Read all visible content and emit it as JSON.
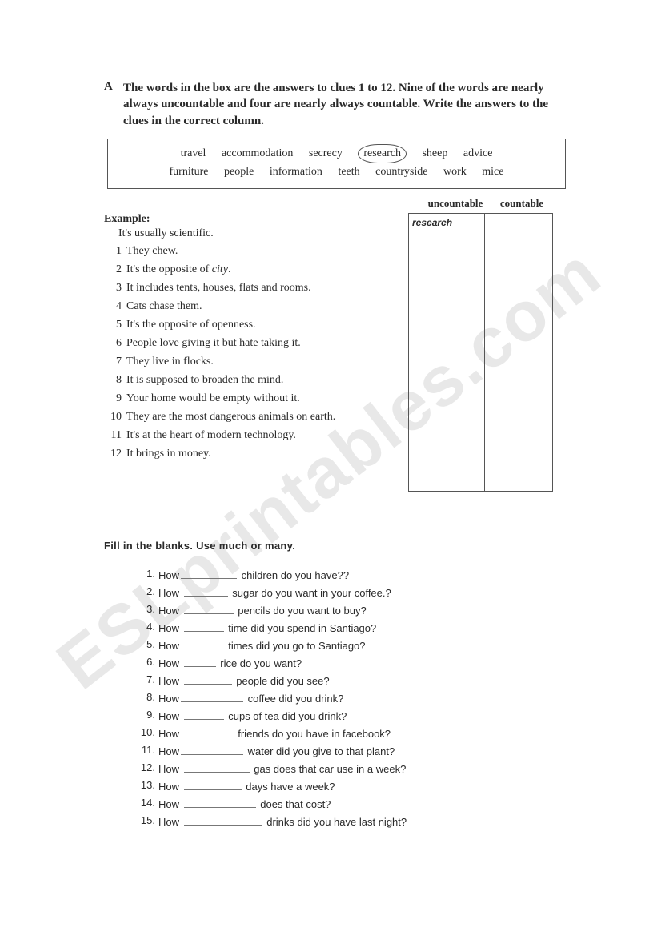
{
  "sectionA": {
    "letter": "A",
    "instruction": "The words in the box are the answers to clues 1 to 12. Nine of the words are nearly always uncountable and four are nearly always countable. Write the answers to the clues in the correct column.",
    "words_row1": [
      "travel",
      "accommodation",
      "secrecy",
      "research",
      "sheep",
      "advice"
    ],
    "words_row2": [
      "furniture",
      "people",
      "information",
      "teeth",
      "countryside",
      "work",
      "mice"
    ],
    "circled_word": "research",
    "col_head1": "uncountable",
    "col_head2": "countable",
    "example_label": "Example:",
    "example_text": "It's usually scientific.",
    "example_answer": "research",
    "clues": [
      {
        "n": "1",
        "t": "They chew."
      },
      {
        "n": "2",
        "t": "It's the opposite of city."
      },
      {
        "n": "3",
        "t": "It includes tents, houses, flats and rooms."
      },
      {
        "n": "4",
        "t": "Cats chase them."
      },
      {
        "n": "5",
        "t": "It's the opposite of openness."
      },
      {
        "n": "6",
        "t": "People love giving it but hate taking it."
      },
      {
        "n": "7",
        "t": "They live in flocks."
      },
      {
        "n": "8",
        "t": "It is supposed to broaden the mind."
      },
      {
        "n": "9",
        "t": "Your home would be empty without it."
      },
      {
        "n": "10",
        "t": "They are the most dangerous animals on earth."
      },
      {
        "n": "11",
        "t": "It's at the heart of modern technology."
      },
      {
        "n": "12",
        "t": "It brings in money."
      }
    ]
  },
  "sectionB": {
    "title": "Fill in the blanks. Use much or many.",
    "items": [
      {
        "n": "1.",
        "pre": "How",
        "post": " children do you have??",
        "bw": 70
      },
      {
        "n": "2.",
        "pre": "How ",
        "post": " sugar do you want in your coffee.?",
        "bw": 55
      },
      {
        "n": "3.",
        "pre": "How ",
        "post": " pencils  do you want to buy?",
        "bw": 62
      },
      {
        "n": "4.",
        "pre": "How ",
        "post": " time did you spend in Santiago?",
        "bw": 50
      },
      {
        "n": "5.",
        "pre": "How ",
        "post": " times did you go to Santiago?",
        "bw": 50
      },
      {
        "n": "6.",
        "pre": "How ",
        "post": " rice do you want?",
        "bw": 40
      },
      {
        "n": "7.",
        "pre": "How ",
        "post": " people did you see?",
        "bw": 60
      },
      {
        "n": "8.",
        "pre": "How",
        "post": " coffee did you drink?",
        "bw": 78
      },
      {
        "n": "9.",
        "pre": "How ",
        "post": " cups of tea did you drink?",
        "bw": 50
      },
      {
        "n": "10.",
        "pre": "How ",
        "post": " friends do you have in facebook?",
        "bw": 62
      },
      {
        "n": "11.",
        "pre": "How",
        "post": " water did you give to that plant?",
        "bw": 78
      },
      {
        "n": "12.",
        "pre": "How ",
        "post": " gas does that car use in a week?",
        "bw": 82
      },
      {
        "n": "13.",
        "pre": "How ",
        "post": " days have a week?",
        "bw": 72
      },
      {
        "n": "14.",
        "pre": "How ",
        "post": " does that cost?",
        "bw": 90
      },
      {
        "n": "15.",
        "pre": "How ",
        "post": " drinks did you have last night?",
        "bw": 98
      }
    ]
  },
  "watermark": "ESLprintables.com"
}
